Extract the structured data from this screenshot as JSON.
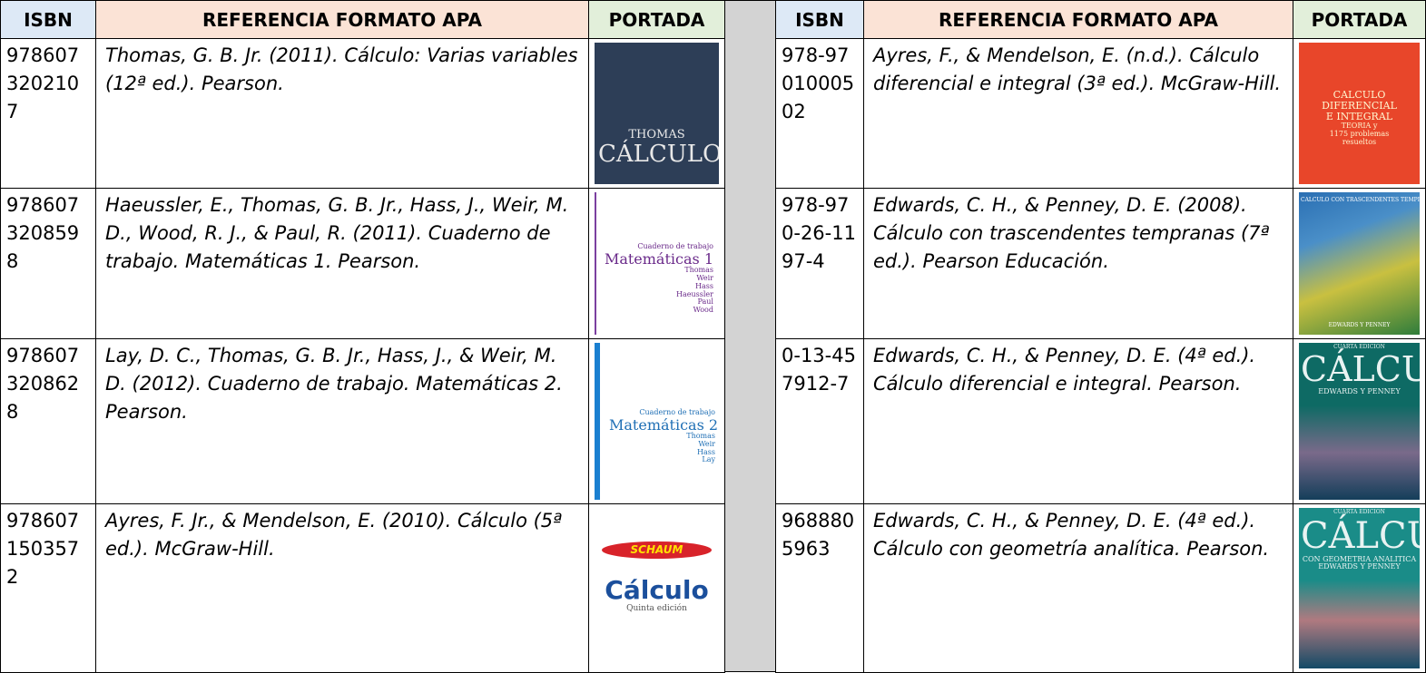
{
  "tables": [
    {
      "headers": [
        "ISBN",
        "REFERENCIA FORMATO APA",
        "PORTADA"
      ],
      "rows": [
        {
          "isbn": "9786073202107",
          "reference": "Thomas, G. B. Jr. (2011). Cálculo: Varias variables (12ª ed.). Pearson.",
          "cover": [
            "THOMAS",
            "CÁLCULO"
          ]
        },
        {
          "isbn": "9786073208598",
          "reference": "Haeussler, E., Thomas, G. B. Jr., Hass, J., Weir, M. D., Wood, R. J., & Paul, R. (2011). Cuaderno de trabajo. Matemáticas 1. Pearson.",
          "cover": [
            "Cuaderno de trabajo",
            "Matemáticas 1",
            "Thomas",
            "Weir",
            "Hass",
            "Haeussler",
            "Paul",
            "Wood"
          ]
        },
        {
          "isbn": "9786073208628",
          "reference": "Lay, D. C., Thomas, G. B. Jr., Hass, J., & Weir, M. D. (2012). Cuaderno de trabajo. Matemáticas 2. Pearson.",
          "cover": [
            "Cuaderno de trabajo",
            "Matemáticas 2",
            "Thomas",
            "Weir",
            "Hass",
            "Lay"
          ]
        },
        {
          "isbn": "9786071503572",
          "reference": "Ayres, F. Jr., & Mendelson, E. (2010). Cálculo (5ª ed.). McGraw-Hill.",
          "cover": [
            "SCHAUM",
            "Cálculo",
            "Quinta edición"
          ]
        }
      ]
    },
    {
      "headers": [
        "ISBN",
        "REFERENCIA FORMATO APA",
        "PORTADA"
      ],
      "rows": [
        {
          "isbn": "978-9701000502",
          "reference": "Ayres, F., & Mendelson, E. (n.d.). Cálculo diferencial e integral (3ª ed.). McGraw-Hill.",
          "cover": [
            "CALCULO",
            "DIFERENCIAL",
            "E INTEGRAL",
            "TEORIA y",
            "1175 problemas",
            "resueltos"
          ]
        },
        {
          "isbn": "978-970-26-1197-4",
          "reference": "Edwards, C. H., & Penney, D. E. (2008). Cálculo con trascendentes tempranas (7ª ed.). Pearson Educación.",
          "cover": [
            "CALCULO CON TRASCENDENTES TEMPRANAS",
            "EDWARDS Y PENNEY"
          ]
        },
        {
          "isbn": "0-13-457912-7",
          "reference": "Edwards, C. H., & Penney, D. E. (4ª ed.). Cálculo diferencial e integral. Pearson.",
          "cover": [
            "CUARTA EDICION",
            "CÁLCULO",
            "EDWARDS Y PENNEY"
          ]
        },
        {
          "isbn": "9688805963",
          "reference": "Edwards, C. H., & Penney, D. E. (4ª ed.). Cálculo con geometría analítica. Pearson.",
          "cover": [
            "CUARTA EDICION",
            "CÁLCULO",
            "CON GEOMETRIA ANALITICA",
            "EDWARDS Y PENNEY"
          ]
        }
      ]
    }
  ]
}
